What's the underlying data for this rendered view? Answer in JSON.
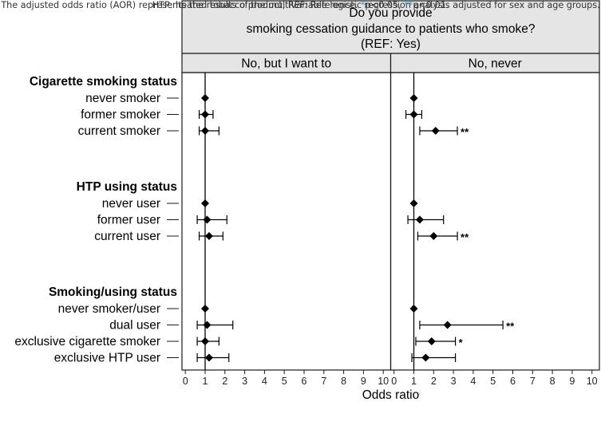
{
  "chart_data": {
    "type": "forest",
    "title": {
      "line1": "Do you provide",
      "line2": "smoking cessation guidance to patients who smoke?",
      "line3": "(REF: Yes)"
    },
    "xlabel": "Odds ratio",
    "xlim": [
      0,
      10
    ],
    "xticks": [
      "0",
      "1",
      "2",
      "3",
      "4",
      "5",
      "6",
      "7",
      "8",
      "9",
      "10"
    ],
    "reference_line": 1,
    "panels": [
      {
        "name": "No, but I want to"
      },
      {
        "name": "No, never"
      }
    ],
    "groups": [
      {
        "heading": "Cigarette smoking status",
        "rows": [
          {
            "label": "never smoker",
            "values": [
              {
                "or": 1.0,
                "lo": null,
                "hi": null,
                "sig": ""
              },
              {
                "or": 1.0,
                "lo": null,
                "hi": null,
                "sig": ""
              }
            ]
          },
          {
            "label": "former smoker",
            "values": [
              {
                "or": 1.0,
                "lo": 0.7,
                "hi": 1.4,
                "sig": ""
              },
              {
                "or": 1.0,
                "lo": 0.6,
                "hi": 1.4,
                "sig": ""
              }
            ]
          },
          {
            "label": "current smoker",
            "values": [
              {
                "or": 1.0,
                "lo": 0.7,
                "hi": 1.7,
                "sig": ""
              },
              {
                "or": 2.1,
                "lo": 1.3,
                "hi": 3.2,
                "sig": "**"
              }
            ]
          }
        ]
      },
      {
        "heading": "HTP using status",
        "rows": [
          {
            "label": "never user",
            "values": [
              {
                "or": 1.0,
                "lo": null,
                "hi": null,
                "sig": ""
              },
              {
                "or": 1.0,
                "lo": null,
                "hi": null,
                "sig": ""
              }
            ]
          },
          {
            "label": "former user",
            "values": [
              {
                "or": 1.1,
                "lo": 0.6,
                "hi": 2.1,
                "sig": ""
              },
              {
                "or": 1.3,
                "lo": 0.7,
                "hi": 2.5,
                "sig": ""
              }
            ]
          },
          {
            "label": "current user",
            "values": [
              {
                "or": 1.2,
                "lo": 0.7,
                "hi": 1.9,
                "sig": ""
              },
              {
                "or": 2.0,
                "lo": 1.2,
                "hi": 3.2,
                "sig": "**"
              }
            ]
          }
        ]
      },
      {
        "heading": "Smoking/using status",
        "rows": [
          {
            "label": "never smoker/user",
            "values": [
              {
                "or": 1.0,
                "lo": null,
                "hi": null,
                "sig": ""
              },
              {
                "or": 1.0,
                "lo": null,
                "hi": null,
                "sig": ""
              }
            ]
          },
          {
            "label": "dual user",
            "values": [
              {
                "or": 1.1,
                "lo": 0.6,
                "hi": 2.4,
                "sig": ""
              },
              {
                "or": 2.7,
                "lo": 1.3,
                "hi": 5.5,
                "sig": "**"
              }
            ]
          },
          {
            "label": "exclusive cigarette smoker",
            "values": [
              {
                "or": 1.0,
                "lo": 0.6,
                "hi": 1.7,
                "sig": ""
              },
              {
                "or": 1.9,
                "lo": 1.1,
                "hi": 3.1,
                "sig": "*"
              }
            ]
          },
          {
            "label": "exclusive HTP user",
            "values": [
              {
                "or": 1.2,
                "lo": 0.6,
                "hi": 2.2,
                "sig": ""
              },
              {
                "or": 1.6,
                "lo": 0.9,
                "hi": 3.1,
                "sig": ""
              }
            ]
          }
        ]
      }
    ]
  },
  "caption": {
    "line1": "The adjusted odds ratio (AOR) represents the results of the multivariable logistic regression analysis adjusted for sex and age groups.",
    "line2_pre": "HTP: heated tobacco product, REF: Reference. ",
    "sig1_mark": "*",
    "sig1_text": "p<0.05, ",
    "sig2_mark": "**",
    "sig2_text": "p<0.01."
  },
  "colors": {
    "strip": "#e5e5e5",
    "frame": "#1a1a1a",
    "marker": "#000000",
    "significance_blue": "#2a9fd8"
  }
}
